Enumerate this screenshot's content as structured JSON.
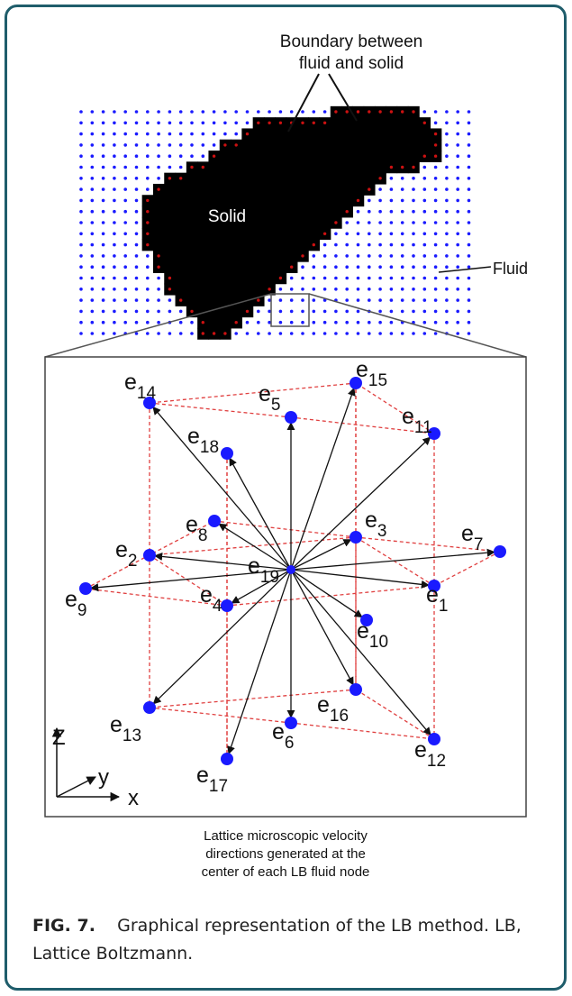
{
  "figure": {
    "annotation_boundary": [
      "Boundary between",
      "fluid and solid"
    ],
    "label_solid": "Solid",
    "label_fluid": "Fluid",
    "axes": {
      "z": "Z",
      "y": "y",
      "x": "x"
    },
    "nodes": [
      {
        "base": "e",
        "sub": "1"
      },
      {
        "base": "e",
        "sub": "2"
      },
      {
        "base": "e",
        "sub": "3"
      },
      {
        "base": "e",
        "sub": "4"
      },
      {
        "base": "e",
        "sub": "5"
      },
      {
        "base": "e",
        "sub": "6"
      },
      {
        "base": "e",
        "sub": "7"
      },
      {
        "base": "e",
        "sub": "8"
      },
      {
        "base": "e",
        "sub": "9"
      },
      {
        "base": "e",
        "sub": "10"
      },
      {
        "base": "e",
        "sub": "11"
      },
      {
        "base": "e",
        "sub": "12"
      },
      {
        "base": "e",
        "sub": "13"
      },
      {
        "base": "e",
        "sub": "14"
      },
      {
        "base": "e",
        "sub": "15"
      },
      {
        "base": "e",
        "sub": "16"
      },
      {
        "base": "e",
        "sub": "17"
      },
      {
        "base": "e",
        "sub": "18"
      },
      {
        "base": "e",
        "sub": "19"
      }
    ],
    "description_lines": [
      "Lattice microscopic velocity",
      "directions generated at the",
      "center of each LB fluid node"
    ],
    "colors": {
      "fluid_dot": "#1a1aff",
      "boundary_dot": "#cc1111",
      "solid": "#000000",
      "dashed_edge": "#e04040",
      "frame": "#1f5d6b"
    }
  },
  "caption": {
    "label": "FIG. 7.",
    "text": "Graphical representation of the LB method. LB, Lattice Boltzmann."
  }
}
